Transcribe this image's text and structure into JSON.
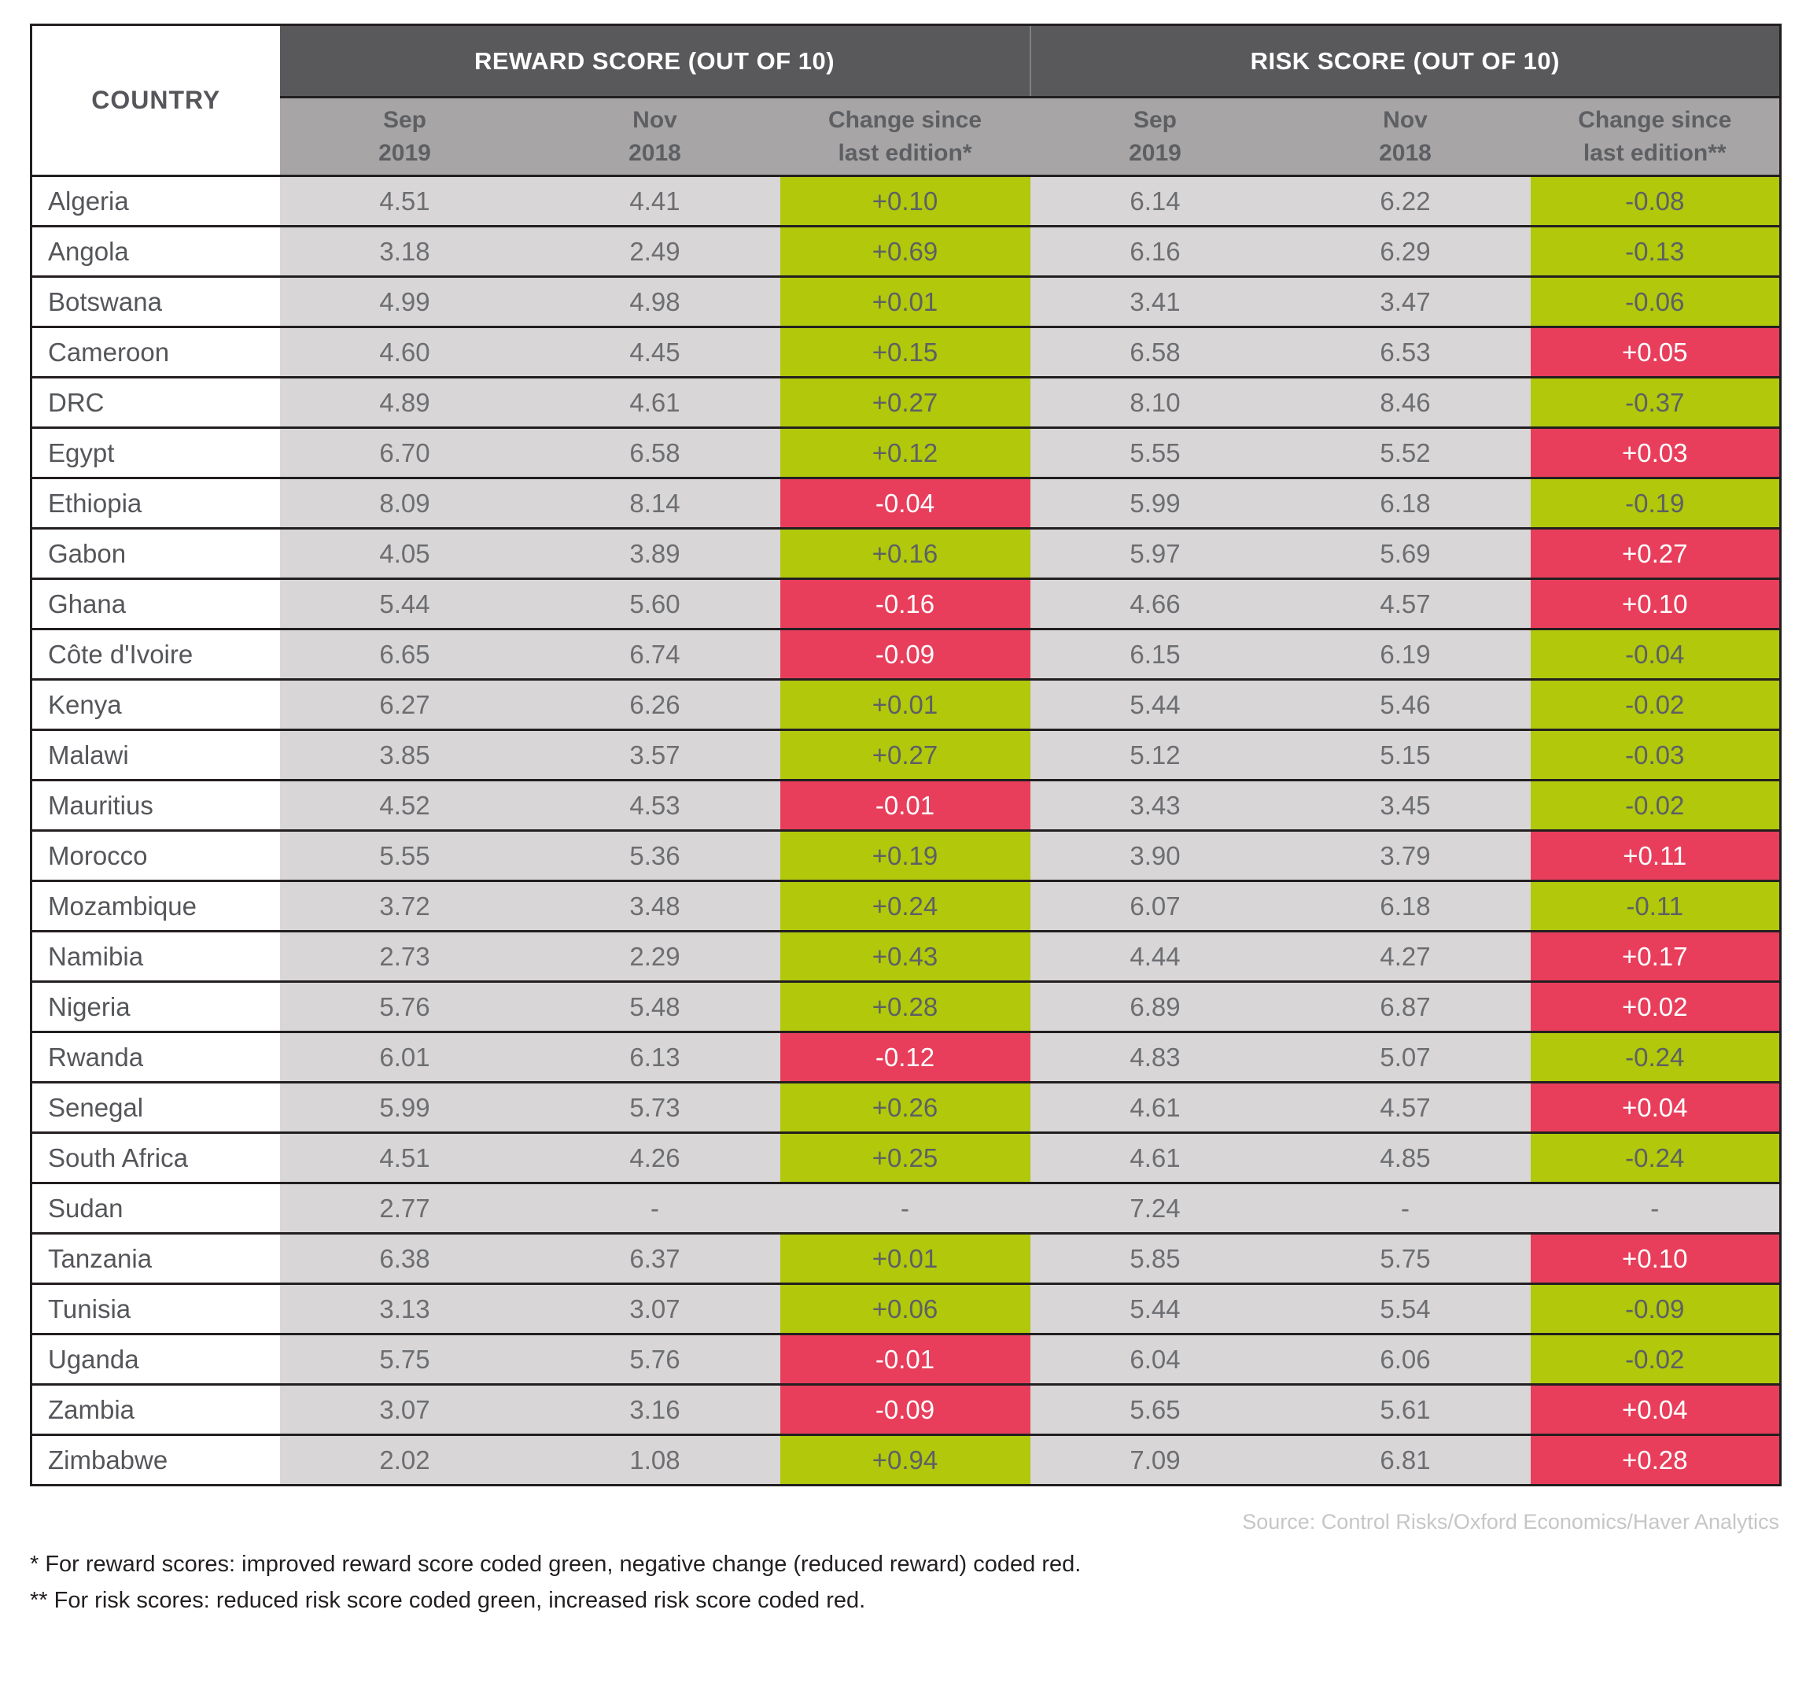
{
  "table": {
    "country_header": "COUNTRY",
    "reward_group": {
      "title": "REWARD SCORE (OUT OF 10)",
      "columns": [
        "Sep\n2019",
        "Nov\n2018",
        "Change since\nlast edition*"
      ]
    },
    "risk_group": {
      "title": "RISK SCORE (OUT OF 10)",
      "columns": [
        "Sep\n2019",
        "Nov\n2018",
        "Change since\nlast edition**"
      ]
    },
    "rows": [
      {
        "country": "Algeria",
        "reward_sep": "4.51",
        "reward_nov": "4.41",
        "reward_change": "+0.10",
        "reward_change_color": "green",
        "risk_sep": "6.14",
        "risk_nov": "6.22",
        "risk_change": "-0.08",
        "risk_change_color": "green"
      },
      {
        "country": "Angola",
        "reward_sep": "3.18",
        "reward_nov": "2.49",
        "reward_change": "+0.69",
        "reward_change_color": "green",
        "risk_sep": "6.16",
        "risk_nov": "6.29",
        "risk_change": "-0.13",
        "risk_change_color": "green"
      },
      {
        "country": "Botswana",
        "reward_sep": "4.99",
        "reward_nov": "4.98",
        "reward_change": "+0.01",
        "reward_change_color": "green",
        "risk_sep": "3.41",
        "risk_nov": "3.47",
        "risk_change": "-0.06",
        "risk_change_color": "green"
      },
      {
        "country": "Cameroon",
        "reward_sep": "4.60",
        "reward_nov": "4.45",
        "reward_change": "+0.15",
        "reward_change_color": "green",
        "risk_sep": "6.58",
        "risk_nov": "6.53",
        "risk_change": "+0.05",
        "risk_change_color": "red"
      },
      {
        "country": "DRC",
        "reward_sep": "4.89",
        "reward_nov": "4.61",
        "reward_change": "+0.27",
        "reward_change_color": "green",
        "risk_sep": "8.10",
        "risk_nov": "8.46",
        "risk_change": "-0.37",
        "risk_change_color": "green"
      },
      {
        "country": "Egypt",
        "reward_sep": "6.70",
        "reward_nov": "6.58",
        "reward_change": "+0.12",
        "reward_change_color": "green",
        "risk_sep": "5.55",
        "risk_nov": "5.52",
        "risk_change": "+0.03",
        "risk_change_color": "red"
      },
      {
        "country": "Ethiopia",
        "reward_sep": "8.09",
        "reward_nov": "8.14",
        "reward_change": "-0.04",
        "reward_change_color": "red",
        "risk_sep": "5.99",
        "risk_nov": "6.18",
        "risk_change": "-0.19",
        "risk_change_color": "green"
      },
      {
        "country": "Gabon",
        "reward_sep": "4.05",
        "reward_nov": "3.89",
        "reward_change": "+0.16",
        "reward_change_color": "green",
        "risk_sep": "5.97",
        "risk_nov": "5.69",
        "risk_change": "+0.27",
        "risk_change_color": "red"
      },
      {
        "country": "Ghana",
        "reward_sep": "5.44",
        "reward_nov": "5.60",
        "reward_change": "-0.16",
        "reward_change_color": "red",
        "risk_sep": "4.66",
        "risk_nov": "4.57",
        "risk_change": "+0.10",
        "risk_change_color": "red"
      },
      {
        "country": "Côte d'Ivoire",
        "reward_sep": "6.65",
        "reward_nov": "6.74",
        "reward_change": "-0.09",
        "reward_change_color": "red",
        "risk_sep": "6.15",
        "risk_nov": "6.19",
        "risk_change": "-0.04",
        "risk_change_color": "green"
      },
      {
        "country": "Kenya",
        "reward_sep": "6.27",
        "reward_nov": "6.26",
        "reward_change": "+0.01",
        "reward_change_color": "green",
        "risk_sep": "5.44",
        "risk_nov": "5.46",
        "risk_change": "-0.02",
        "risk_change_color": "green"
      },
      {
        "country": "Malawi",
        "reward_sep": "3.85",
        "reward_nov": "3.57",
        "reward_change": "+0.27",
        "reward_change_color": "green",
        "risk_sep": "5.12",
        "risk_nov": "5.15",
        "risk_change": "-0.03",
        "risk_change_color": "green"
      },
      {
        "country": "Mauritius",
        "reward_sep": "4.52",
        "reward_nov": "4.53",
        "reward_change": "-0.01",
        "reward_change_color": "red",
        "risk_sep": "3.43",
        "risk_nov": "3.45",
        "risk_change": "-0.02",
        "risk_change_color": "green"
      },
      {
        "country": "Morocco",
        "reward_sep": "5.55",
        "reward_nov": "5.36",
        "reward_change": "+0.19",
        "reward_change_color": "green",
        "risk_sep": "3.90",
        "risk_nov": "3.79",
        "risk_change": "+0.11",
        "risk_change_color": "red"
      },
      {
        "country": "Mozambique",
        "reward_sep": "3.72",
        "reward_nov": "3.48",
        "reward_change": "+0.24",
        "reward_change_color": "green",
        "risk_sep": "6.07",
        "risk_nov": "6.18",
        "risk_change": "-0.11",
        "risk_change_color": "green"
      },
      {
        "country": "Namibia",
        "reward_sep": "2.73",
        "reward_nov": "2.29",
        "reward_change": "+0.43",
        "reward_change_color": "green",
        "risk_sep": "4.44",
        "risk_nov": "4.27",
        "risk_change": "+0.17",
        "risk_change_color": "red"
      },
      {
        "country": "Nigeria",
        "reward_sep": "5.76",
        "reward_nov": "5.48",
        "reward_change": "+0.28",
        "reward_change_color": "green",
        "risk_sep": "6.89",
        "risk_nov": "6.87",
        "risk_change": "+0.02",
        "risk_change_color": "red"
      },
      {
        "country": "Rwanda",
        "reward_sep": "6.01",
        "reward_nov": "6.13",
        "reward_change": "-0.12",
        "reward_change_color": "red",
        "risk_sep": "4.83",
        "risk_nov": "5.07",
        "risk_change": "-0.24",
        "risk_change_color": "green"
      },
      {
        "country": "Senegal",
        "reward_sep": "5.99",
        "reward_nov": "5.73",
        "reward_change": "+0.26",
        "reward_change_color": "green",
        "risk_sep": "4.61",
        "risk_nov": "4.57",
        "risk_change": "+0.04",
        "risk_change_color": "red"
      },
      {
        "country": "South Africa",
        "reward_sep": "4.51",
        "reward_nov": "4.26",
        "reward_change": "+0.25",
        "reward_change_color": "green",
        "risk_sep": "4.61",
        "risk_nov": "4.85",
        "risk_change": "-0.24",
        "risk_change_color": "green"
      },
      {
        "country": "Sudan",
        "reward_sep": "2.77",
        "reward_nov": "-",
        "reward_change": "-",
        "reward_change_color": "none",
        "risk_sep": "7.24",
        "risk_nov": "-",
        "risk_change": "-",
        "risk_change_color": "none"
      },
      {
        "country": "Tanzania",
        "reward_sep": "6.38",
        "reward_nov": "6.37",
        "reward_change": "+0.01",
        "reward_change_color": "green",
        "risk_sep": "5.85",
        "risk_nov": "5.75",
        "risk_change": "+0.10",
        "risk_change_color": "red"
      },
      {
        "country": "Tunisia",
        "reward_sep": "3.13",
        "reward_nov": "3.07",
        "reward_change": "+0.06",
        "reward_change_color": "green",
        "risk_sep": "5.44",
        "risk_nov": "5.54",
        "risk_change": "-0.09",
        "risk_change_color": "green"
      },
      {
        "country": "Uganda",
        "reward_sep": "5.75",
        "reward_nov": "5.76",
        "reward_change": "-0.01",
        "reward_change_color": "red",
        "risk_sep": "6.04",
        "risk_nov": "6.06",
        "risk_change": "-0.02",
        "risk_change_color": "green"
      },
      {
        "country": "Zambia",
        "reward_sep": "3.07",
        "reward_nov": "3.16",
        "reward_change": "-0.09",
        "reward_change_color": "red",
        "risk_sep": "5.65",
        "risk_nov": "5.61",
        "risk_change": "+0.04",
        "risk_change_color": "red"
      },
      {
        "country": "Zimbabwe",
        "reward_sep": "2.02",
        "reward_nov": "1.08",
        "reward_change": "+0.94",
        "reward_change_color": "green",
        "risk_sep": "7.09",
        "risk_nov": "6.81",
        "risk_change": "+0.28",
        "risk_change_color": "red"
      }
    ]
  },
  "footer": {
    "source": "Source: Control Risks/Oxford Economics/Haver Analytics",
    "footnote_reward": "* For reward scores: improved reward score coded green, negative change (reduced reward) coded red.",
    "footnote_risk": "** For risk scores: reduced risk score coded green, increased risk score coded red."
  },
  "colors": {
    "change_green": "#b1c80b",
    "change_red": "#e83e5b",
    "header_dark": "#59595b",
    "header_gray": "#a7a5a6",
    "cell_gray": "#d8d6d7",
    "text_gray": "#6d6e71",
    "border_dark": "#231f20"
  }
}
